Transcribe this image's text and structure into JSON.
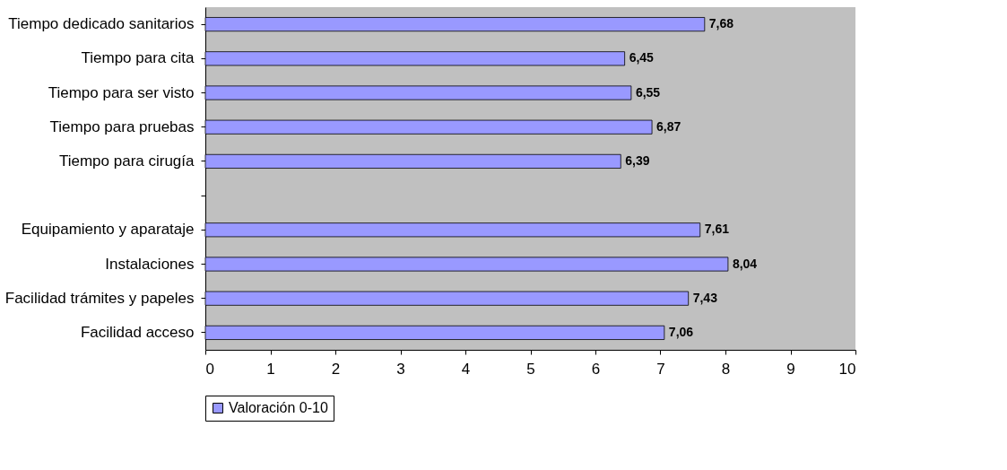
{
  "chart_data": {
    "type": "bar",
    "orientation": "horizontal",
    "categories": [
      "Tiempo dedicado sanitarios",
      "Tiempo para cita",
      "Tiempo para ser visto",
      "Tiempo para pruebas",
      "Tiempo para cirugía",
      null,
      "Equipamiento y aparataje",
      "Instalaciones",
      "Facilidad trámites y papeles",
      "Facilidad acceso"
    ],
    "series": [
      {
        "name": "Valoración 0-10",
        "color": "#9999ff",
        "values": [
          7.68,
          6.45,
          6.55,
          6.87,
          6.39,
          null,
          7.61,
          8.04,
          7.43,
          7.06
        ],
        "value_labels": [
          "7,68",
          "6,45",
          "6,55",
          "6,87",
          "6,39",
          null,
          "7,61",
          "8,04",
          "7,43",
          "7,06"
        ]
      }
    ],
    "xlim": [
      0,
      10
    ],
    "xticks": [
      0,
      1,
      2,
      3,
      4,
      5,
      6,
      7,
      8,
      9,
      10
    ],
    "grid": false,
    "legend": "bottom"
  }
}
